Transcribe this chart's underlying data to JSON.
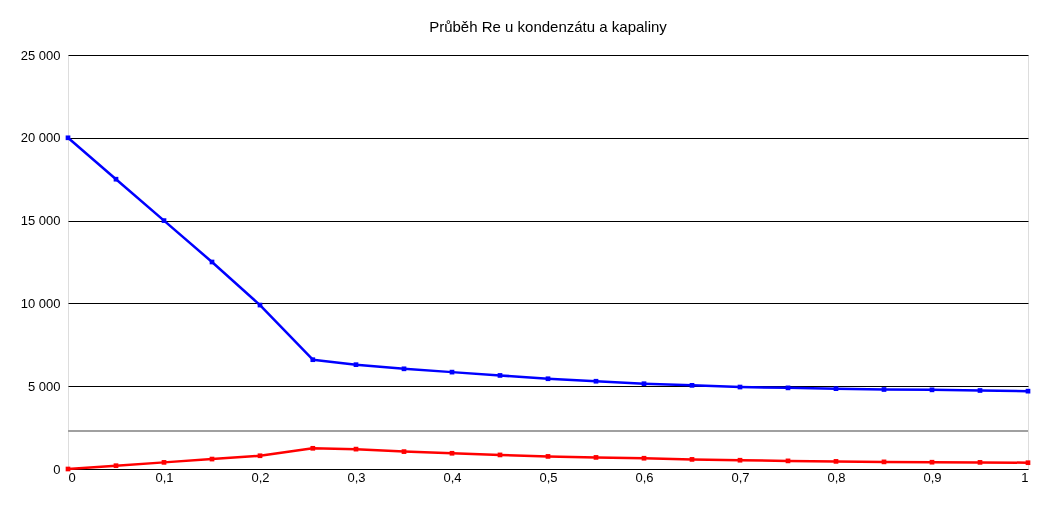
{
  "chart_data": {
    "type": "line",
    "title": "Průběh Re u kondenzátu a kapaliny",
    "xlim": [
      0,
      1
    ],
    "ylim": [
      0,
      25000
    ],
    "xticks": [
      0,
      {
        "value": 0.1,
        "label": "0,1"
      },
      {
        "value": 0.2,
        "label": "0,2"
      },
      {
        "value": 0.3,
        "label": "0,3"
      },
      {
        "value": 0.4,
        "label": "0,4"
      },
      {
        "value": 0.5,
        "label": "0,5"
      },
      {
        "value": 0.6,
        "label": "0,6"
      },
      {
        "value": 0.7,
        "label": "0,7"
      },
      {
        "value": 0.8,
        "label": "0,8"
      },
      {
        "value": 0.9,
        "label": "0,9"
      },
      1
    ],
    "yticks": [
      0,
      {
        "value": 5000,
        "label": "5 000"
      },
      {
        "value": 10000,
        "label": "10 000"
      },
      {
        "value": 15000,
        "label": "15 000"
      },
      {
        "value": 20000,
        "label": "20 000"
      },
      {
        "value": 25000,
        "label": "25 000"
      }
    ],
    "x": [
      0,
      0.05,
      0.1,
      0.15,
      0.2,
      0.255,
      0.3,
      0.35,
      0.4,
      0.45,
      0.5,
      0.55,
      0.6,
      0.65,
      0.7,
      0.75,
      0.8,
      0.85,
      0.9,
      0.95,
      1
    ],
    "series": [
      {
        "color": "#0000ff",
        "values": [
          20000,
          17500,
          15000,
          12500,
          9900,
          6600,
          6300,
          6050,
          5850,
          5650,
          5450,
          5300,
          5150,
          5050,
          4950,
          4900,
          4850,
          4800,
          4780,
          4740,
          4700
        ]
      },
      {
        "color": "#ff0000",
        "values": [
          0,
          200,
          400,
          600,
          800,
          1250,
          1200,
          1050,
          950,
          850,
          760,
          700,
          650,
          580,
          530,
          490,
          460,
          430,
          410,
          400,
          380
        ]
      }
    ],
    "ref_lines": [
      {
        "axis": "y",
        "value": 2300,
        "color": "#a0a0a0"
      }
    ],
    "grid": "y",
    "marker": "square",
    "line_style": "solid"
  }
}
